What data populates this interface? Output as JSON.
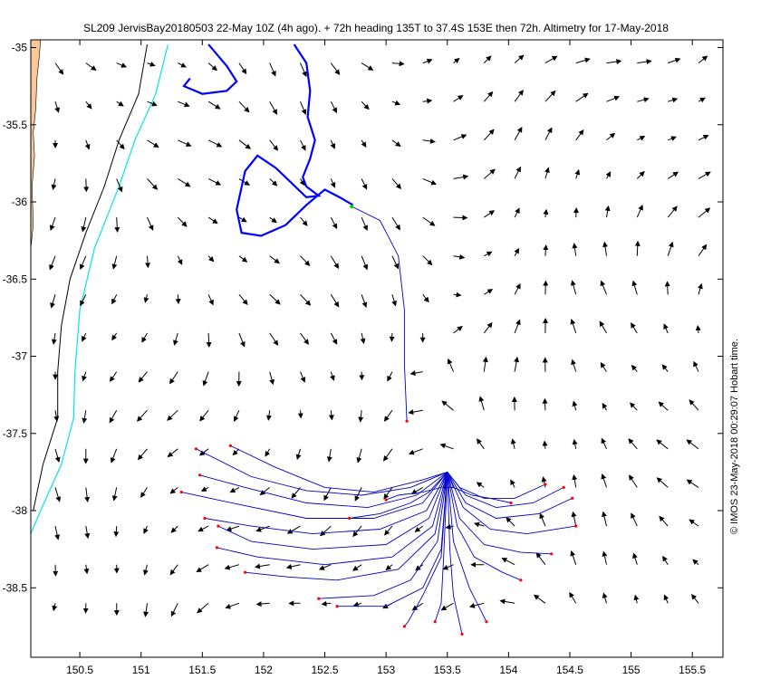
{
  "title": "SL209 JervisBay20180503 22-May 10Z (4h ago). + 72h heading 135T to 37.4S 153E then 72h. Altimetry for 17-May-2018",
  "credit": "© IMOS 23-May-2018 00:29:07 Hobart time.",
  "colors": {
    "land": "#FAC898",
    "isobath_shallow": "#000000",
    "isobath_deep": "#00E5EE",
    "glider_track": "#0000FF",
    "forecast_tracks": "#0000CC",
    "track_end": "#FF0000",
    "current_position": "#00CC00",
    "vectors": "#000000"
  },
  "chart_data": {
    "type": "map",
    "xlim": [
      150.1,
      155.75
    ],
    "ylim": [
      -38.95,
      -34.95
    ],
    "x_ticks": [
      "150.5",
      "151",
      "151.5",
      "152",
      "152.5",
      "153",
      "153.5",
      "154",
      "154.5",
      "155",
      "155.5"
    ],
    "y_ticks": [
      "-35",
      "-35.5",
      "-36",
      "-36.5",
      "-37",
      "-37.5",
      "-38",
      "-38.5"
    ],
    "grid": false,
    "land_polygon": [
      [
        150.1,
        -34.95
      ],
      [
        150.18,
        -34.95
      ],
      [
        150.17,
        -35.05
      ],
      [
        150.15,
        -35.2
      ],
      [
        150.14,
        -35.4
      ],
      [
        150.12,
        -35.55
      ],
      [
        150.13,
        -35.7
      ],
      [
        150.11,
        -35.9
      ],
      [
        150.12,
        -36.15
      ],
      [
        150.1,
        -36.3
      ]
    ],
    "isobath_shallow": [
      [
        151.05,
        -34.98
      ],
      [
        150.98,
        -35.3
      ],
      [
        150.82,
        -35.6
      ],
      [
        150.7,
        -35.9
      ],
      [
        150.55,
        -36.2
      ],
      [
        150.42,
        -36.5
      ],
      [
        150.35,
        -36.8
      ],
      [
        150.32,
        -37.1
      ],
      [
        150.32,
        -37.4
      ],
      [
        150.2,
        -37.7
      ],
      [
        150.12,
        -38.0
      ]
    ],
    "isobath_deep": [
      [
        151.22,
        -34.98
      ],
      [
        151.12,
        -35.3
      ],
      [
        150.95,
        -35.6
      ],
      [
        150.82,
        -35.9
      ],
      [
        150.62,
        -36.3
      ],
      [
        150.5,
        -36.7
      ],
      [
        150.46,
        -37.1
      ],
      [
        150.45,
        -37.4
      ],
      [
        150.35,
        -37.7
      ],
      [
        150.18,
        -38.0
      ],
      [
        150.1,
        -38.15
      ]
    ],
    "glider_track": [
      [
        151.55,
        -34.98
      ],
      [
        151.7,
        -35.12
      ],
      [
        151.78,
        -35.22
      ],
      [
        151.7,
        -35.28
      ],
      [
        151.5,
        -35.3
      ],
      [
        151.35,
        -35.25
      ],
      [
        151.4,
        -35.2
      ],
      [
        152.25,
        -34.98
      ],
      [
        152.35,
        -35.1
      ],
      [
        152.38,
        -35.28
      ],
      [
        152.36,
        -35.45
      ],
      [
        152.42,
        -35.6
      ],
      [
        152.38,
        -35.72
      ],
      [
        152.32,
        -35.84
      ],
      [
        152.35,
        -35.9
      ],
      [
        152.45,
        -35.96
      ],
      [
        152.35,
        -35.97
      ],
      [
        152.1,
        -35.78
      ],
      [
        151.95,
        -35.7
      ],
      [
        151.85,
        -35.8
      ],
      [
        151.78,
        -36.05
      ],
      [
        151.82,
        -36.2
      ],
      [
        151.98,
        -36.22
      ],
      [
        152.18,
        -36.15
      ],
      [
        152.35,
        -36.02
      ],
      [
        152.5,
        -35.92
      ],
      [
        152.62,
        -35.97
      ],
      [
        152.73,
        -36.02
      ]
    ],
    "current_position": [
      152.72,
      -36.03
    ],
    "forecast_tracks": [
      [
        [
          152.72,
          -36.03
        ],
        [
          152.95,
          -36.12
        ],
        [
          153.1,
          -36.35
        ],
        [
          153.15,
          -36.7
        ],
        [
          153.15,
          -37.05
        ],
        [
          153.17,
          -37.42
        ]
      ],
      [
        [
          153.5,
          -37.75
        ],
        [
          153.3,
          -37.8
        ],
        [
          152.9,
          -37.88
        ],
        [
          152.5,
          -37.85
        ],
        [
          152.1,
          -37.72
        ],
        [
          151.73,
          -37.58
        ]
      ],
      [
        [
          153.5,
          -37.75
        ],
        [
          153.2,
          -37.85
        ],
        [
          152.8,
          -37.9
        ],
        [
          152.35,
          -37.87
        ],
        [
          151.9,
          -37.78
        ],
        [
          151.45,
          -37.6
        ]
      ],
      [
        [
          153.5,
          -37.75
        ],
        [
          153.25,
          -37.9
        ],
        [
          152.85,
          -37.98
        ],
        [
          152.35,
          -37.95
        ],
        [
          151.85,
          -37.85
        ],
        [
          151.48,
          -37.77
        ]
      ],
      [
        [
          153.5,
          -37.75
        ],
        [
          153.3,
          -37.95
        ],
        [
          152.9,
          -38.05
        ],
        [
          152.35,
          -38.05
        ],
        [
          151.8,
          -37.96
        ],
        [
          151.33,
          -37.88
        ]
      ],
      [
        [
          153.5,
          -37.75
        ],
        [
          153.33,
          -38.0
        ],
        [
          152.95,
          -38.12
        ],
        [
          152.4,
          -38.15
        ],
        [
          151.9,
          -38.1
        ],
        [
          151.52,
          -38.05
        ]
      ],
      [
        [
          153.5,
          -37.75
        ],
        [
          153.35,
          -38.05
        ],
        [
          153.0,
          -38.22
        ],
        [
          152.4,
          -38.25
        ],
        [
          151.9,
          -38.2
        ],
        [
          151.63,
          -38.1
        ]
      ],
      [
        [
          153.5,
          -37.75
        ],
        [
          153.38,
          -38.1
        ],
        [
          153.05,
          -38.3
        ],
        [
          152.5,
          -38.35
        ],
        [
          151.95,
          -38.3
        ],
        [
          151.62,
          -38.24
        ]
      ],
      [
        [
          153.5,
          -37.75
        ],
        [
          153.4,
          -38.15
        ],
        [
          153.1,
          -38.38
        ],
        [
          152.6,
          -38.45
        ],
        [
          152.2,
          -38.43
        ],
        [
          151.85,
          -38.4
        ]
      ],
      [
        [
          153.5,
          -37.75
        ],
        [
          153.42,
          -38.2
        ],
        [
          153.2,
          -38.45
        ],
        [
          152.9,
          -38.55
        ],
        [
          152.45,
          -38.57
        ]
      ],
      [
        [
          153.5,
          -37.75
        ],
        [
          153.45,
          -38.25
        ],
        [
          153.3,
          -38.5
        ],
        [
          153.0,
          -38.62
        ],
        [
          152.6,
          -38.62
        ]
      ],
      [
        [
          153.5,
          -37.75
        ],
        [
          153.45,
          -38.3
        ],
        [
          153.3,
          -38.55
        ],
        [
          153.18,
          -38.72
        ],
        [
          153.15,
          -38.75
        ]
      ],
      [
        [
          153.5,
          -37.75
        ],
        [
          153.47,
          -38.3
        ],
        [
          153.45,
          -38.6
        ],
        [
          153.4,
          -38.72
        ]
      ],
      [
        [
          153.5,
          -37.75
        ],
        [
          153.52,
          -38.25
        ],
        [
          153.55,
          -38.55
        ],
        [
          153.62,
          -38.8
        ]
      ],
      [
        [
          153.5,
          -37.75
        ],
        [
          153.55,
          -38.2
        ],
        [
          153.68,
          -38.5
        ],
        [
          153.82,
          -38.72
        ]
      ],
      [
        [
          153.5,
          -37.75
        ],
        [
          153.58,
          -38.1
        ],
        [
          153.72,
          -38.3
        ],
        [
          153.95,
          -38.4
        ],
        [
          154.1,
          -38.45
        ]
      ],
      [
        [
          153.5,
          -37.75
        ],
        [
          153.6,
          -38.05
        ],
        [
          153.8,
          -38.22
        ],
        [
          154.1,
          -38.27
        ],
        [
          154.35,
          -38.28
        ]
      ],
      [
        [
          153.5,
          -37.75
        ],
        [
          153.63,
          -37.98
        ],
        [
          153.85,
          -38.12
        ],
        [
          154.15,
          -38.15
        ],
        [
          154.55,
          -38.1
        ]
      ],
      [
        [
          153.5,
          -37.75
        ],
        [
          153.65,
          -37.95
        ],
        [
          153.9,
          -38.05
        ],
        [
          154.25,
          -38.02
        ],
        [
          154.52,
          -37.92
        ]
      ],
      [
        [
          153.5,
          -37.75
        ],
        [
          153.65,
          -37.9
        ],
        [
          153.9,
          -37.98
        ],
        [
          154.2,
          -37.95
        ],
        [
          154.45,
          -37.85
        ]
      ],
      [
        [
          153.5,
          -37.75
        ],
        [
          153.6,
          -37.85
        ],
        [
          153.8,
          -37.92
        ],
        [
          154.05,
          -37.92
        ],
        [
          154.3,
          -37.83
        ]
      ],
      [
        [
          153.5,
          -37.75
        ],
        [
          153.45,
          -37.85
        ],
        [
          153.3,
          -37.88
        ],
        [
          153.1,
          -37.9
        ],
        [
          153.0,
          -37.93
        ]
      ],
      [
        [
          153.5,
          -37.75
        ],
        [
          153.35,
          -37.88
        ],
        [
          153.2,
          -37.95
        ],
        [
          152.95,
          -38.02
        ],
        [
          152.7,
          -38.05
        ]
      ],
      [
        [
          153.5,
          -37.75
        ],
        [
          153.55,
          -37.85
        ],
        [
          153.7,
          -37.9
        ],
        [
          153.85,
          -37.92
        ],
        [
          154.02,
          -37.95
        ]
      ]
    ]
  }
}
